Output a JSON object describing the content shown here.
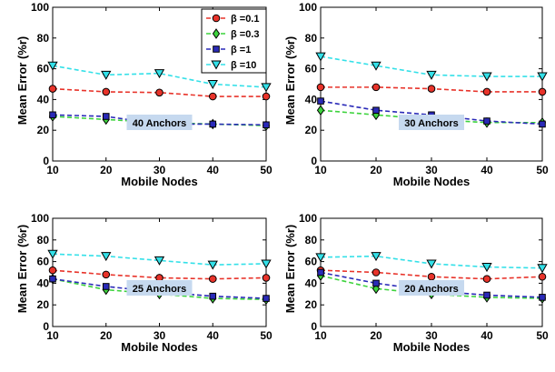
{
  "chart_data": [
    {
      "type": "line",
      "x": [
        10,
        20,
        30,
        40,
        50
      ],
      "xlabel": "Mobile Nodes",
      "ylabel": "Mean Error (%r)",
      "xlim": [
        10,
        50
      ],
      "ylim": [
        0,
        100
      ],
      "xticks": [
        "10",
        "20",
        "30",
        "40",
        "50"
      ],
      "yticks": [
        "0",
        "20",
        "40",
        "60",
        "80",
        "100"
      ],
      "annotation": "40 Anchors",
      "legend": "top-right",
      "grid": false,
      "series": [
        {
          "name": "β =0.1",
          "color": "#e8332a",
          "marker": "circle",
          "values": [
            47,
            45,
            44.5,
            42,
            42
          ]
        },
        {
          "name": "β =0.3",
          "color": "#3dd33d",
          "marker": "diamond",
          "values": [
            29,
            27,
            25,
            24,
            23
          ]
        },
        {
          "name": "β =1",
          "color": "#2a2ab8",
          "marker": "square",
          "values": [
            30,
            29,
            24,
            24,
            23.5
          ]
        },
        {
          "name": "β =10",
          "color": "#33e0e8",
          "marker": "triangle-down",
          "values": [
            62,
            56,
            57,
            50,
            48
          ]
        }
      ]
    },
    {
      "type": "line",
      "x": [
        10,
        20,
        30,
        40,
        50
      ],
      "xlabel": "Mobile Nodes",
      "ylabel": "Mean Error (%r)",
      "xlim": [
        10,
        50
      ],
      "ylim": [
        0,
        100
      ],
      "xticks": [
        "10",
        "20",
        "30",
        "40",
        "50"
      ],
      "yticks": [
        "0",
        "20",
        "40",
        "60",
        "80",
        "100"
      ],
      "annotation": "30 Anchors",
      "grid": false,
      "series": [
        {
          "name": "β =0.1",
          "color": "#e8332a",
          "marker": "circle",
          "values": [
            48,
            48,
            47,
            45,
            45
          ]
        },
        {
          "name": "β =0.3",
          "color": "#3dd33d",
          "marker": "diamond",
          "values": [
            33,
            30,
            27,
            25,
            25
          ]
        },
        {
          "name": "β =1",
          "color": "#2a2ab8",
          "marker": "square",
          "values": [
            39,
            33,
            30,
            26,
            24
          ]
        },
        {
          "name": "β =10",
          "color": "#33e0e8",
          "marker": "triangle-down",
          "values": [
            68,
            62,
            56,
            55,
            55
          ]
        }
      ]
    },
    {
      "type": "line",
      "x": [
        10,
        20,
        30,
        40,
        50
      ],
      "xlabel": "Mobile Nodes",
      "ylabel": "Mean Error (%r)",
      "xlim": [
        10,
        50
      ],
      "ylim": [
        0,
        100
      ],
      "xticks": [
        "10",
        "20",
        "30",
        "40",
        "50"
      ],
      "yticks": [
        "0",
        "20",
        "40",
        "60",
        "80",
        "100"
      ],
      "annotation": "25 Anchors",
      "grid": false,
      "series": [
        {
          "name": "β =0.1",
          "color": "#e8332a",
          "marker": "circle",
          "values": [
            52,
            48,
            45,
            44,
            45
          ]
        },
        {
          "name": "β =0.3",
          "color": "#3dd33d",
          "marker": "diamond",
          "values": [
            44,
            34,
            30,
            26,
            25
          ]
        },
        {
          "name": "β =1",
          "color": "#2a2ab8",
          "marker": "square",
          "values": [
            44,
            37,
            32,
            28,
            26
          ]
        },
        {
          "name": "β =10",
          "color": "#33e0e8",
          "marker": "triangle-down",
          "values": [
            67,
            65,
            61,
            57,
            58
          ]
        }
      ]
    },
    {
      "type": "line",
      "x": [
        10,
        20,
        30,
        40,
        50
      ],
      "xlabel": "Mobile Nodes",
      "ylabel": "Mean Error (%r)",
      "xlim": [
        10,
        50
      ],
      "ylim": [
        0,
        100
      ],
      "xticks": [
        "10",
        "20",
        "30",
        "40",
        "50"
      ],
      "yticks": [
        "0",
        "20",
        "40",
        "60",
        "80",
        "100"
      ],
      "annotation": "20 Anchors",
      "grid": false,
      "series": [
        {
          "name": "β =0.1",
          "color": "#e8332a",
          "marker": "circle",
          "values": [
            52,
            50,
            46,
            44,
            46
          ]
        },
        {
          "name": "β =0.3",
          "color": "#3dd33d",
          "marker": "diamond",
          "values": [
            47,
            35,
            30,
            27,
            26
          ]
        },
        {
          "name": "β =1",
          "color": "#2a2ab8",
          "marker": "square",
          "values": [
            50,
            40,
            33,
            29,
            27
          ]
        },
        {
          "name": "β =10",
          "color": "#33e0e8",
          "marker": "triangle-down",
          "values": [
            64,
            65,
            58,
            55,
            54
          ]
        }
      ]
    }
  ]
}
